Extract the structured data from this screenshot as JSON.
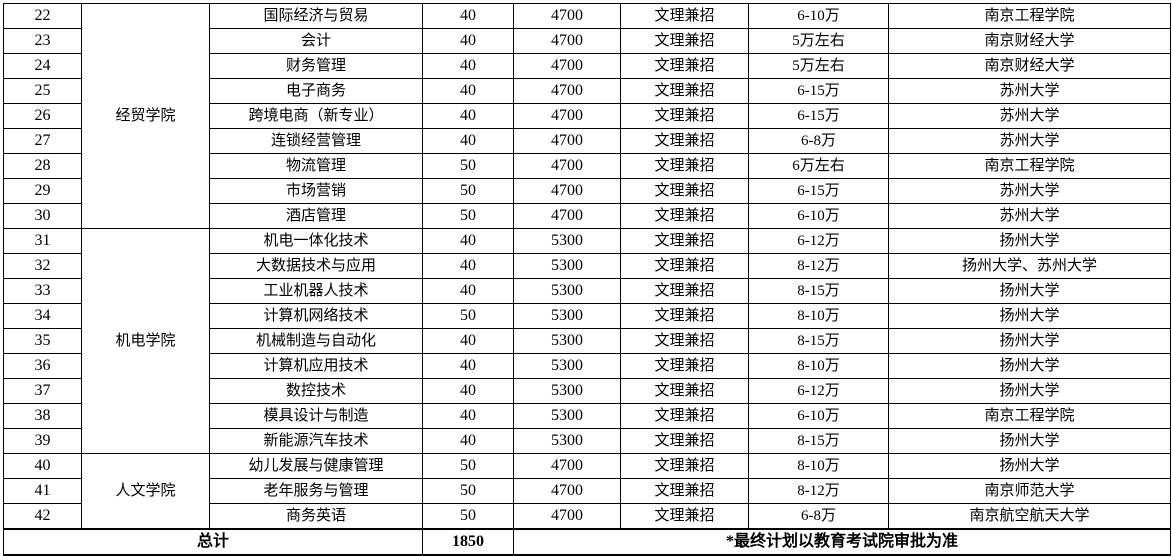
{
  "meta": {
    "accent_border_color": "#000000",
    "background_color": "#ffffff",
    "text_color": "#000000"
  },
  "table": {
    "column_names": [
      "row-number",
      "college",
      "major",
      "quota",
      "tuition",
      "enroll-type",
      "salary",
      "university"
    ],
    "colleges": [
      {
        "name": "经贸学院",
        "rows": [
          {
            "no": "22",
            "major": "国际经济与贸易",
            "quota": "40",
            "tuition": "4700",
            "type": "文理兼招",
            "salary": "6-10万",
            "university": "南京工程学院"
          },
          {
            "no": "23",
            "major": "会计",
            "quota": "40",
            "tuition": "4700",
            "type": "文理兼招",
            "salary": "5万左右",
            "university": "南京财经大学"
          },
          {
            "no": "24",
            "major": "财务管理",
            "quota": "40",
            "tuition": "4700",
            "type": "文理兼招",
            "salary": "5万左右",
            "university": "南京财经大学"
          },
          {
            "no": "25",
            "major": "电子商务",
            "quota": "40",
            "tuition": "4700",
            "type": "文理兼招",
            "salary": "6-15万",
            "university": "苏州大学"
          },
          {
            "no": "26",
            "major": "跨境电商（新专业）",
            "quota": "40",
            "tuition": "4700",
            "type": "文理兼招",
            "salary": "6-15万",
            "university": "苏州大学"
          },
          {
            "no": "27",
            "major": "连锁经营管理",
            "quota": "40",
            "tuition": "4700",
            "type": "文理兼招",
            "salary": "6-8万",
            "university": "苏州大学"
          },
          {
            "no": "28",
            "major": "物流管理",
            "quota": "50",
            "tuition": "4700",
            "type": "文理兼招",
            "salary": "6万左右",
            "university": "南京工程学院"
          },
          {
            "no": "29",
            "major": "市场营销",
            "quota": "50",
            "tuition": "4700",
            "type": "文理兼招",
            "salary": "6-15万",
            "university": "苏州大学"
          },
          {
            "no": "30",
            "major": "酒店管理",
            "quota": "50",
            "tuition": "4700",
            "type": "文理兼招",
            "salary": "6-10万",
            "university": "苏州大学"
          }
        ]
      },
      {
        "name": "机电学院",
        "rows": [
          {
            "no": "31",
            "major": "机电一体化技术",
            "quota": "40",
            "tuition": "5300",
            "type": "文理兼招",
            "salary": "6-12万",
            "university": "扬州大学"
          },
          {
            "no": "32",
            "major": "大数据技术与应用",
            "quota": "40",
            "tuition": "5300",
            "type": "文理兼招",
            "salary": "8-12万",
            "university": "扬州大学、苏州大学"
          },
          {
            "no": "33",
            "major": "工业机器人技术",
            "quota": "40",
            "tuition": "5300",
            "type": "文理兼招",
            "salary": "8-15万",
            "university": "扬州大学"
          },
          {
            "no": "34",
            "major": "计算机网络技术",
            "quota": "50",
            "tuition": "5300",
            "type": "文理兼招",
            "salary": "8-10万",
            "university": "扬州大学"
          },
          {
            "no": "35",
            "major": "机械制造与自动化",
            "quota": "40",
            "tuition": "5300",
            "type": "文理兼招",
            "salary": "8-15万",
            "university": "扬州大学"
          },
          {
            "no": "36",
            "major": "计算机应用技术",
            "quota": "40",
            "tuition": "5300",
            "type": "文理兼招",
            "salary": "8-10万",
            "university": "扬州大学"
          },
          {
            "no": "37",
            "major": "数控技术",
            "quota": "40",
            "tuition": "5300",
            "type": "文理兼招",
            "salary": "6-12万",
            "university": "扬州大学"
          },
          {
            "no": "38",
            "major": "模具设计与制造",
            "quota": "40",
            "tuition": "5300",
            "type": "文理兼招",
            "salary": "6-10万",
            "university": "南京工程学院"
          },
          {
            "no": "39",
            "major": "新能源汽车技术",
            "quota": "40",
            "tuition": "5300",
            "type": "文理兼招",
            "salary": "8-15万",
            "university": "扬州大学"
          }
        ]
      },
      {
        "name": "人文学院",
        "rows": [
          {
            "no": "40",
            "major": "幼儿发展与健康管理",
            "quota": "50",
            "tuition": "4700",
            "type": "文理兼招",
            "salary": "8-10万",
            "university": "扬州大学"
          },
          {
            "no": "41",
            "major": "老年服务与管理",
            "quota": "50",
            "tuition": "4700",
            "type": "文理兼招",
            "salary": "8-12万",
            "university": "南京师范大学"
          },
          {
            "no": "42",
            "major": "商务英语",
            "quota": "50",
            "tuition": "4700",
            "type": "文理兼招",
            "salary": "6-8万",
            "university": "南京航空航天大学"
          }
        ]
      }
    ],
    "footer": {
      "total_label": "总计",
      "total_value": "1850",
      "note": "*最终计划以教育考试院审批为准"
    }
  }
}
